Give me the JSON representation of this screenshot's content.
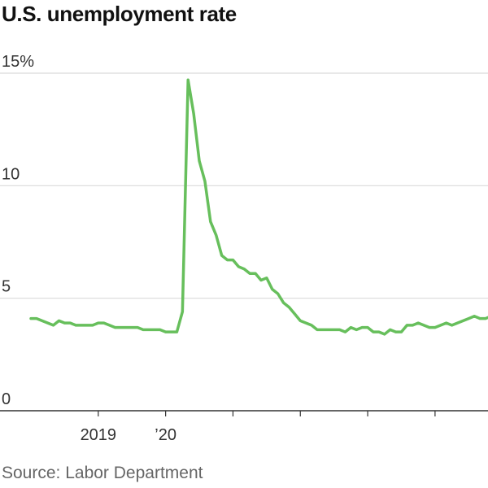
{
  "chart_data": {
    "type": "line",
    "title": "U.S. unemployment rate",
    "xlabel": "",
    "ylabel": "",
    "source": "Source: Labor Department",
    "ylim": [
      0,
      15
    ],
    "y_ticks": [
      {
        "value": 0,
        "label": "0"
      },
      {
        "value": 5,
        "label": "5"
      },
      {
        "value": 10,
        "label": "10"
      },
      {
        "value": 15,
        "label": "15%"
      }
    ],
    "x_range": [
      "2018-01",
      "2024-10"
    ],
    "x_tick_marks": [
      "2019-01",
      "2020-01",
      "2021-01",
      "2022-01",
      "2023-01",
      "2024-01"
    ],
    "x_tick_labels": [
      {
        "date": "2019-01",
        "label": "2019"
      },
      {
        "date": "2020-01",
        "label": "’20"
      }
    ],
    "grid": "horizontal",
    "colors": {
      "line": "#67bf5c",
      "grid": "#d9d9d9",
      "axis": "#333333"
    },
    "series": [
      {
        "start": "2018-01",
        "frequency": "monthly",
        "values": [
          4.1,
          4.1,
          4.0,
          3.9,
          3.8,
          4.0,
          3.9,
          3.9,
          3.8,
          3.8,
          3.8,
          3.8,
          3.9,
          3.9,
          3.8,
          3.7,
          3.7,
          3.7,
          3.7,
          3.7,
          3.6,
          3.6,
          3.6,
          3.6,
          3.5,
          3.5,
          3.5,
          4.4,
          14.7,
          13.2,
          11.1,
          10.2,
          8.4,
          7.8,
          6.9,
          6.7,
          6.7,
          6.4,
          6.3,
          6.1,
          6.1,
          5.8,
          5.9,
          5.4,
          5.2,
          4.8,
          4.6,
          4.3,
          4.0,
          3.9,
          3.8,
          3.6,
          3.6,
          3.6,
          3.6,
          3.6,
          3.5,
          3.7,
          3.6,
          3.7,
          3.7,
          3.5,
          3.5,
          3.4,
          3.6,
          3.5,
          3.5,
          3.8,
          3.8,
          3.9,
          3.8,
          3.7,
          3.7,
          3.8,
          3.9,
          3.8,
          3.9,
          4.0,
          4.1,
          4.2,
          4.1,
          4.1,
          4.2
        ]
      }
    ]
  }
}
